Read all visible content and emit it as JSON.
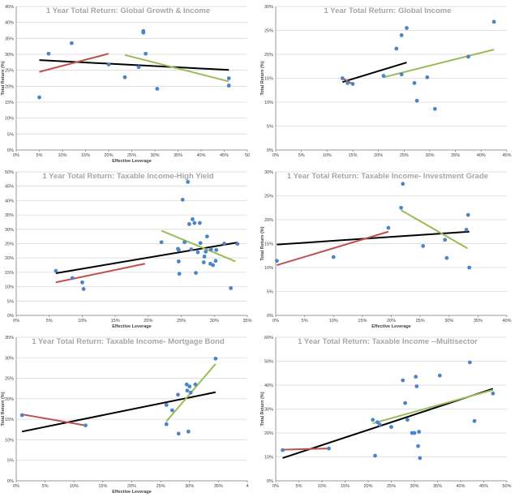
{
  "colors": {
    "point": "#4a86c5",
    "red_line": "#c0504d",
    "green_line": "#9bbb59",
    "black_line": "#000000",
    "grid": "#d9d9d9",
    "title": "#a6a6a6"
  },
  "chart_data": [
    {
      "type": "scatter",
      "title": "1 Year Total Return: Global Growth & Income",
      "xlabel": "Effective Leverage",
      "ylabel": "Total Return (%)",
      "xlim": [
        0,
        50
      ],
      "ylim": [
        0,
        45
      ],
      "xticks": [
        "0%",
        "5%",
        "10%",
        "15%",
        "20%",
        "25%",
        "30%",
        "35%",
        "40%",
        "45%",
        "50"
      ],
      "yticks": [
        "0%",
        "5%",
        "10%",
        "15%",
        "20%",
        "25%",
        "30%",
        "35%",
        "40%",
        "45%"
      ],
      "points": [
        [
          5,
          16.5
        ],
        [
          7,
          30.2
        ],
        [
          12,
          33.5
        ],
        [
          20,
          26.8
        ],
        [
          23.5,
          22.8
        ],
        [
          26.5,
          26
        ],
        [
          27.5,
          37.3
        ],
        [
          27.5,
          36.8
        ],
        [
          28,
          30.2
        ],
        [
          30.5,
          19.2
        ],
        [
          46,
          22.5
        ],
        [
          46,
          20.2
        ]
      ],
      "lines": [
        {
          "color": "black",
          "x": [
            5,
            46
          ],
          "y": [
            28.2,
            25.1
          ]
        },
        {
          "color": "red",
          "x": [
            5,
            20
          ],
          "y": [
            24.5,
            30.2
          ]
        },
        {
          "color": "green",
          "x": [
            23.5,
            46
          ],
          "y": [
            29.8,
            21.5
          ]
        }
      ]
    },
    {
      "type": "scatter",
      "title": "1 Year Total Return: Global Income",
      "xlabel": "",
      "ylabel": "Total Return (%)",
      "xlim": [
        0,
        45
      ],
      "ylim": [
        0,
        30
      ],
      "xticks": [
        "0%",
        "5%",
        "10%",
        "15%",
        "20%",
        "25%",
        "30%",
        "35%",
        "40%",
        "45%"
      ],
      "yticks": [
        "0%",
        "5%",
        "10%",
        "15%",
        "20%",
        "25%",
        "30%"
      ],
      "points": [
        [
          13,
          15
        ],
        [
          14,
          14
        ],
        [
          15,
          13.8
        ],
        [
          21,
          15.5
        ],
        [
          23.5,
          21.2
        ],
        [
          24.5,
          15.8
        ],
        [
          24.5,
          24
        ],
        [
          25.5,
          25.5
        ],
        [
          27,
          14
        ],
        [
          27.5,
          10.3
        ],
        [
          29.5,
          15.2
        ],
        [
          31,
          8.6
        ],
        [
          37.5,
          19.5
        ],
        [
          42.5,
          26.8
        ]
      ],
      "lines": [
        {
          "color": "black",
          "x": [
            13,
            25.5
          ],
          "y": [
            14.2,
            18.3
          ]
        },
        {
          "color": "red",
          "x": [
            13,
            15
          ],
          "y": [
            15,
            13.8
          ]
        },
        {
          "color": "green",
          "x": [
            21,
            42.5
          ],
          "y": [
            15.2,
            21
          ]
        }
      ]
    },
    {
      "type": "scatter",
      "title": "1 Year Total Return: Taxable Income-High Yield",
      "xlabel": "Effective Leverage",
      "ylabel": "",
      "xlim": [
        0,
        35
      ],
      "ylim": [
        0,
        50
      ],
      "xticks": [
        "0%",
        "5%",
        "10%",
        "15%",
        "20%",
        "25%",
        "30%",
        "35%"
      ],
      "yticks": [
        "0%",
        "5%",
        "10%",
        "15%",
        "20%",
        "25%",
        "30%",
        "35%",
        "40%",
        "45%",
        "50%"
      ],
      "points": [
        [
          6,
          15.5
        ],
        [
          8.5,
          13
        ],
        [
          10,
          11.5
        ],
        [
          10.2,
          9.2
        ],
        [
          22,
          25.5
        ],
        [
          24.5,
          23.2
        ],
        [
          24.6,
          22.8
        ],
        [
          24.6,
          18.8
        ],
        [
          24.7,
          14.5
        ],
        [
          25.2,
          40.3
        ],
        [
          25.5,
          25.5
        ],
        [
          26,
          46.5
        ],
        [
          26.2,
          31.8
        ],
        [
          26.5,
          23
        ],
        [
          26.7,
          33.5
        ],
        [
          27,
          32.2
        ],
        [
          27.2,
          14.8
        ],
        [
          27.5,
          22
        ],
        [
          27.8,
          32.2
        ],
        [
          27.9,
          25.2
        ],
        [
          28.4,
          18.5
        ],
        [
          28.5,
          20.5
        ],
        [
          28.7,
          22.2
        ],
        [
          28.9,
          27.5
        ],
        [
          29.4,
          18
        ],
        [
          29.5,
          23
        ],
        [
          29.8,
          17.5
        ],
        [
          30.2,
          19
        ],
        [
          30.3,
          22.8
        ],
        [
          31.5,
          25
        ],
        [
          32.5,
          9.5
        ],
        [
          33.5,
          24.9
        ]
      ],
      "lines": [
        {
          "color": "black",
          "x": [
            6,
            33.5
          ],
          "y": [
            14.7,
            25.4
          ]
        },
        {
          "color": "red",
          "x": [
            6,
            19.5
          ],
          "y": [
            11.5,
            18
          ]
        },
        {
          "color": "green",
          "x": [
            22,
            33.2
          ],
          "y": [
            29.5,
            18.8
          ]
        }
      ]
    },
    {
      "type": "scatter",
      "title": "1 Year Total Return: Taxable Income- Investment Grade",
      "xlabel": "Effective Leverage",
      "ylabel": "Total Return (%)",
      "xlim": [
        0,
        40
      ],
      "ylim": [
        0,
        30
      ],
      "xticks": [
        "0%",
        "5%",
        "10%",
        "15%",
        "20%",
        "25%",
        "30%",
        "35%",
        "40%"
      ],
      "yticks": [
        "0%",
        "5%",
        "10%",
        "15%",
        "20%",
        "25%",
        "30%"
      ],
      "points": [
        [
          0.2,
          11.4
        ],
        [
          10,
          12.2
        ],
        [
          19.5,
          18.3
        ],
        [
          21.7,
          22.5
        ],
        [
          22,
          27.5
        ],
        [
          25.5,
          14.5
        ],
        [
          29.3,
          15.8
        ],
        [
          29.6,
          12
        ],
        [
          33,
          17.9
        ],
        [
          33.3,
          21
        ],
        [
          33.5,
          10
        ]
      ],
      "lines": [
        {
          "color": "black",
          "x": [
            0.2,
            33.5
          ],
          "y": [
            14.8,
            17.5
          ]
        },
        {
          "color": "red",
          "x": [
            0.2,
            19.5
          ],
          "y": [
            10.5,
            17.5
          ]
        },
        {
          "color": "green",
          "x": [
            21.7,
            33.2
          ],
          "y": [
            22,
            14
          ]
        }
      ]
    },
    {
      "type": "scatter",
      "title": "1 Year Total Return: Taxable Income- Mortgage Bond",
      "xlabel": "Effective Leverage",
      "ylabel": "Total Return (%)",
      "xlim": [
        0,
        40
      ],
      "ylim": [
        0,
        35
      ],
      "xticks": [
        "0%",
        "5%",
        "10%",
        "15%",
        "20%",
        "25%",
        "30%",
        "35%",
        "4"
      ],
      "yticks": [
        "0%",
        "5%",
        "10%",
        "15%",
        "20%",
        "25%",
        "30%",
        "35%"
      ],
      "points": [
        [
          1,
          16
        ],
        [
          12,
          13.5
        ],
        [
          26,
          18.5
        ],
        [
          26,
          13.8
        ],
        [
          27,
          17.2
        ],
        [
          28,
          21
        ],
        [
          28.1,
          11.5
        ],
        [
          29.5,
          23.5
        ],
        [
          29.6,
          22
        ],
        [
          29.8,
          12
        ],
        [
          30,
          23
        ],
        [
          30.2,
          21.5
        ],
        [
          31,
          23.5
        ],
        [
          34.5,
          29.8
        ]
      ],
      "lines": [
        {
          "color": "black",
          "x": [
            1,
            34.5
          ],
          "y": [
            12,
            21.6
          ]
        },
        {
          "color": "red",
          "x": [
            1,
            12
          ],
          "y": [
            16.2,
            13.5
          ]
        },
        {
          "color": "green",
          "x": [
            26,
            34.5
          ],
          "y": [
            14.5,
            28.5
          ]
        }
      ]
    },
    {
      "type": "scatter",
      "title": "1 Year Total Return: Taxable Income --Multisector",
      "xlabel": "",
      "ylabel": "Total Return (%)",
      "xlim": [
        0,
        50
      ],
      "ylim": [
        0,
        60
      ],
      "xticks": [
        "0%",
        "5%",
        "10%",
        "15%",
        "20%",
        "25%",
        "30%",
        "35%",
        "40%",
        "45%",
        "50%"
      ],
      "yticks": [
        "0%",
        "10%",
        "20%",
        "30%",
        "40%",
        "50%",
        "60%"
      ],
      "points": [
        [
          1.5,
          12.8
        ],
        [
          11.5,
          13.5
        ],
        [
          21,
          25.5
        ],
        [
          21.5,
          10.5
        ],
        [
          22,
          24.5
        ],
        [
          22.5,
          23.5
        ],
        [
          25,
          22.5
        ],
        [
          27.5,
          42
        ],
        [
          28,
          32.5
        ],
        [
          28.5,
          25.5
        ],
        [
          29.5,
          20
        ],
        [
          30,
          20
        ],
        [
          30.3,
          43.5
        ],
        [
          30.5,
          39.5
        ],
        [
          30.8,
          14.5
        ],
        [
          31,
          20.5
        ],
        [
          31.2,
          9.5
        ],
        [
          35.5,
          44
        ],
        [
          42,
          49.5
        ],
        [
          43,
          25
        ],
        [
          47,
          36.5
        ]
      ],
      "lines": [
        {
          "color": "black",
          "x": [
            1.5,
            47
          ],
          "y": [
            9.5,
            38.5
          ]
        },
        {
          "color": "red",
          "x": [
            1.5,
            11.5
          ],
          "y": [
            13,
            13.5
          ]
        },
        {
          "color": "green",
          "x": [
            21,
            47
          ],
          "y": [
            24,
            38
          ]
        }
      ]
    }
  ]
}
